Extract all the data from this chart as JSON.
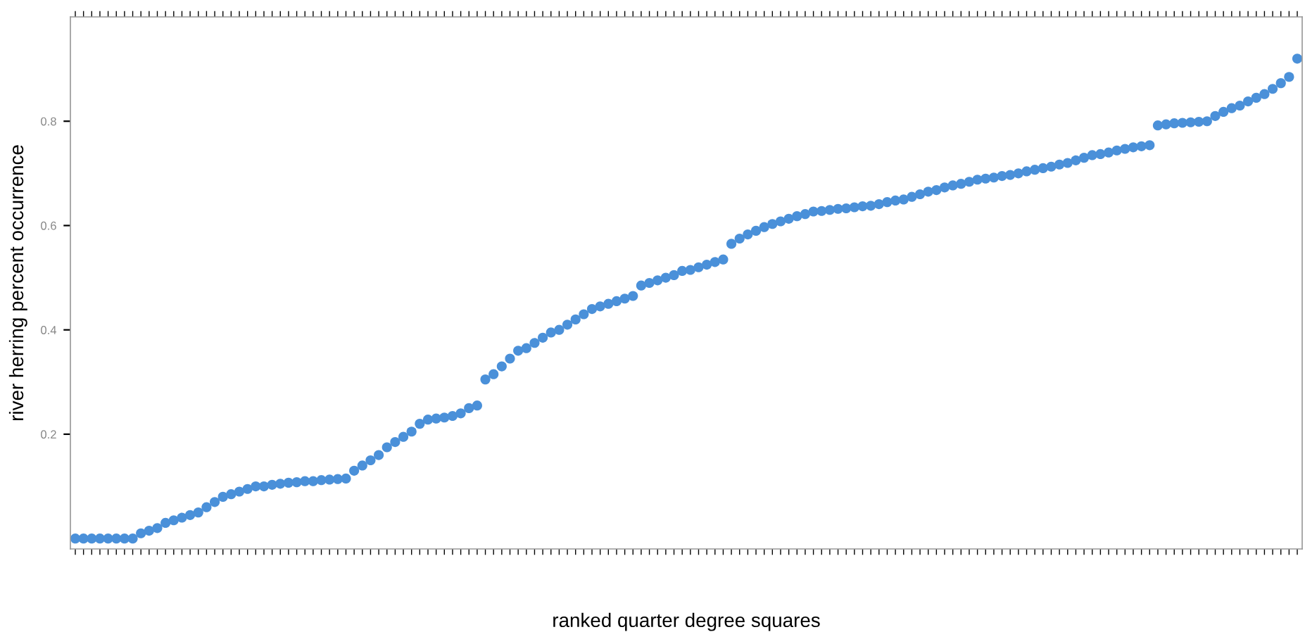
{
  "chart_data": {
    "type": "scatter",
    "xlabel": "ranked quarter degree squares",
    "ylabel": "river herring percent occurrence",
    "categories": [
      null,
      null,
      null,
      null,
      null,
      null,
      null,
      null,
      null,
      null,
      null,
      null,
      null,
      null,
      null,
      null,
      null,
      null,
      null,
      null,
      null,
      null,
      null,
      null,
      null,
      null,
      null,
      null,
      null,
      null,
      null,
      null,
      null,
      null,
      null,
      null,
      null,
      null,
      null,
      null,
      null,
      null,
      null,
      null,
      null,
      null,
      null,
      null,
      null,
      null,
      null,
      null,
      null,
      null,
      null,
      null,
      null,
      null,
      null,
      null,
      null,
      null,
      null,
      null,
      null,
      null,
      null,
      null,
      null,
      null,
      null,
      null,
      null,
      null,
      null,
      null,
      null,
      null,
      null,
      null,
      null,
      null,
      null,
      null,
      null,
      null,
      null,
      null,
      null,
      null,
      null,
      null,
      null,
      null,
      null,
      null,
      null,
      null,
      null,
      null,
      null,
      null,
      null,
      null,
      null,
      null,
      null,
      null,
      null,
      null,
      null,
      null,
      null,
      null,
      null,
      null,
      null,
      null,
      null,
      null,
      null,
      null,
      null,
      null,
      null,
      null,
      null,
      null,
      null,
      null,
      null,
      null,
      null,
      null,
      null,
      null,
      null,
      null,
      null,
      null,
      null,
      null,
      null,
      null,
      null,
      null,
      null,
      null,
      null,
      null
    ],
    "series": [
      {
        "color": "#4a90d9",
        "values": [
          0,
          0,
          0,
          0,
          0,
          0,
          0,
          0,
          0.01,
          0.015,
          0.02,
          0.03,
          0.035,
          0.04,
          0.045,
          0.05,
          0.06,
          0.07,
          0.08,
          0.085,
          0.09,
          0.095,
          0.1,
          0.1,
          0.103,
          0.105,
          0.107,
          0.108,
          0.11,
          0.11,
          0.112,
          0.113,
          0.114,
          0.115,
          0.13,
          0.14,
          0.15,
          0.16,
          0.175,
          0.185,
          0.195,
          0.205,
          0.22,
          0.228,
          0.23,
          0.232,
          0.235,
          0.24,
          0.25,
          0.255,
          0.305,
          0.315,
          0.33,
          0.345,
          0.36,
          0.365,
          0.375,
          0.385,
          0.395,
          0.4,
          0.41,
          0.42,
          0.43,
          0.44,
          0.445,
          0.45,
          0.455,
          0.46,
          0.465,
          0.485,
          0.49,
          0.495,
          0.5,
          0.505,
          0.513,
          0.515,
          0.52,
          0.525,
          0.53,
          0.535,
          0.565,
          0.575,
          0.583,
          0.59,
          0.597,
          0.603,
          0.608,
          0.613,
          0.618,
          0.622,
          0.627,
          0.628,
          0.63,
          0.632,
          0.633,
          0.635,
          0.637,
          0.638,
          0.641,
          0.645,
          0.648,
          0.65,
          0.655,
          0.66,
          0.665,
          0.668,
          0.673,
          0.677,
          0.68,
          0.684,
          0.688,
          0.69,
          0.692,
          0.695,
          0.697,
          0.7,
          0.704,
          0.707,
          0.71,
          0.713,
          0.717,
          0.72,
          0.725,
          0.73,
          0.735,
          0.737,
          0.74,
          0.744,
          0.747,
          0.75,
          0.752,
          0.754,
          0.792,
          0.794,
          0.796,
          0.797,
          0.798,
          0.799,
          0.8,
          0.81,
          0.818,
          0.825,
          0.83,
          0.838,
          0.845,
          0.852,
          0.862,
          0.873,
          0.885,
          0.92
        ]
      }
    ],
    "ylim": [
      -0.02,
      1.0
    ],
    "yticks": [
      0.2,
      0.4,
      0.6,
      0.8
    ],
    "marker": "circle",
    "grid": false,
    "legend": false
  }
}
